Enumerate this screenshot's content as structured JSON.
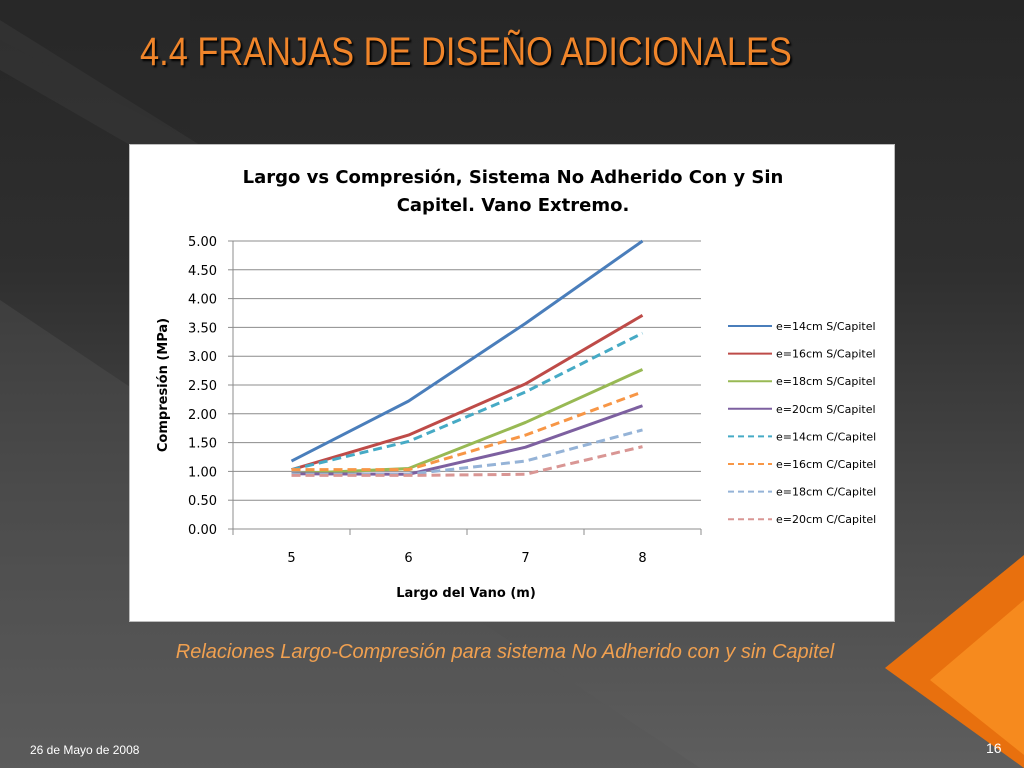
{
  "slide": {
    "title": "4.4   FRANJAS DE DISEÑO ADICIONALES",
    "caption": "Relaciones Largo-Compresión para sistema  No Adherido con y sin Capitel",
    "date": "26 de Mayo de 2008",
    "page_number": "16",
    "accent_color": "#f0852a"
  },
  "chart_data": {
    "type": "line",
    "title_lines": [
      "Largo vs Compresión, Sistema No Adherido Con y Sin",
      "Capitel. Vano Extremo."
    ],
    "xlabel": "Largo del Vano (m)",
    "ylabel": "Compresión (MPa)",
    "categories": [
      "5",
      "6",
      "7",
      "8"
    ],
    "ylim": [
      0,
      5
    ],
    "yticks": [
      "0.00",
      "0.50",
      "1.00",
      "1.50",
      "2.00",
      "2.50",
      "3.00",
      "3.50",
      "4.00",
      "4.50",
      "5.00"
    ],
    "grid": true,
    "legend_position": "right",
    "series": [
      {
        "name": "e=14cm S/Capitel",
        "values": [
          1.18,
          2.22,
          3.57,
          5.0
        ],
        "color": "#4a7ebb",
        "dashed": false
      },
      {
        "name": "e=16cm S/Capitel",
        "values": [
          1.03,
          1.63,
          2.52,
          3.71
        ],
        "color": "#be4b48",
        "dashed": false
      },
      {
        "name": "e=18cm S/Capitel",
        "values": [
          0.96,
          1.05,
          1.85,
          2.77
        ],
        "color": "#98b954",
        "dashed": false
      },
      {
        "name": "e=20cm S/Capitel",
        "values": [
          0.96,
          0.95,
          1.42,
          2.14
        ],
        "color": "#7d60a0",
        "dashed": false
      },
      {
        "name": "e=14cm C/Capitel",
        "values": [
          1.03,
          1.52,
          2.38,
          3.4
        ],
        "color": "#46aac5",
        "dashed": true
      },
      {
        "name": "e=16cm C/Capitel",
        "values": [
          1.03,
          1.03,
          1.63,
          2.38
        ],
        "color": "#f79646",
        "dashed": true
      },
      {
        "name": "e=18cm C/Capitel",
        "values": [
          0.95,
          0.95,
          1.18,
          1.72
        ],
        "color": "#95b3d7",
        "dashed": true
      },
      {
        "name": "e=20cm C/Capitel",
        "values": [
          0.93,
          0.93,
          0.95,
          1.43
        ],
        "color": "#d99694",
        "dashed": true
      }
    ]
  }
}
